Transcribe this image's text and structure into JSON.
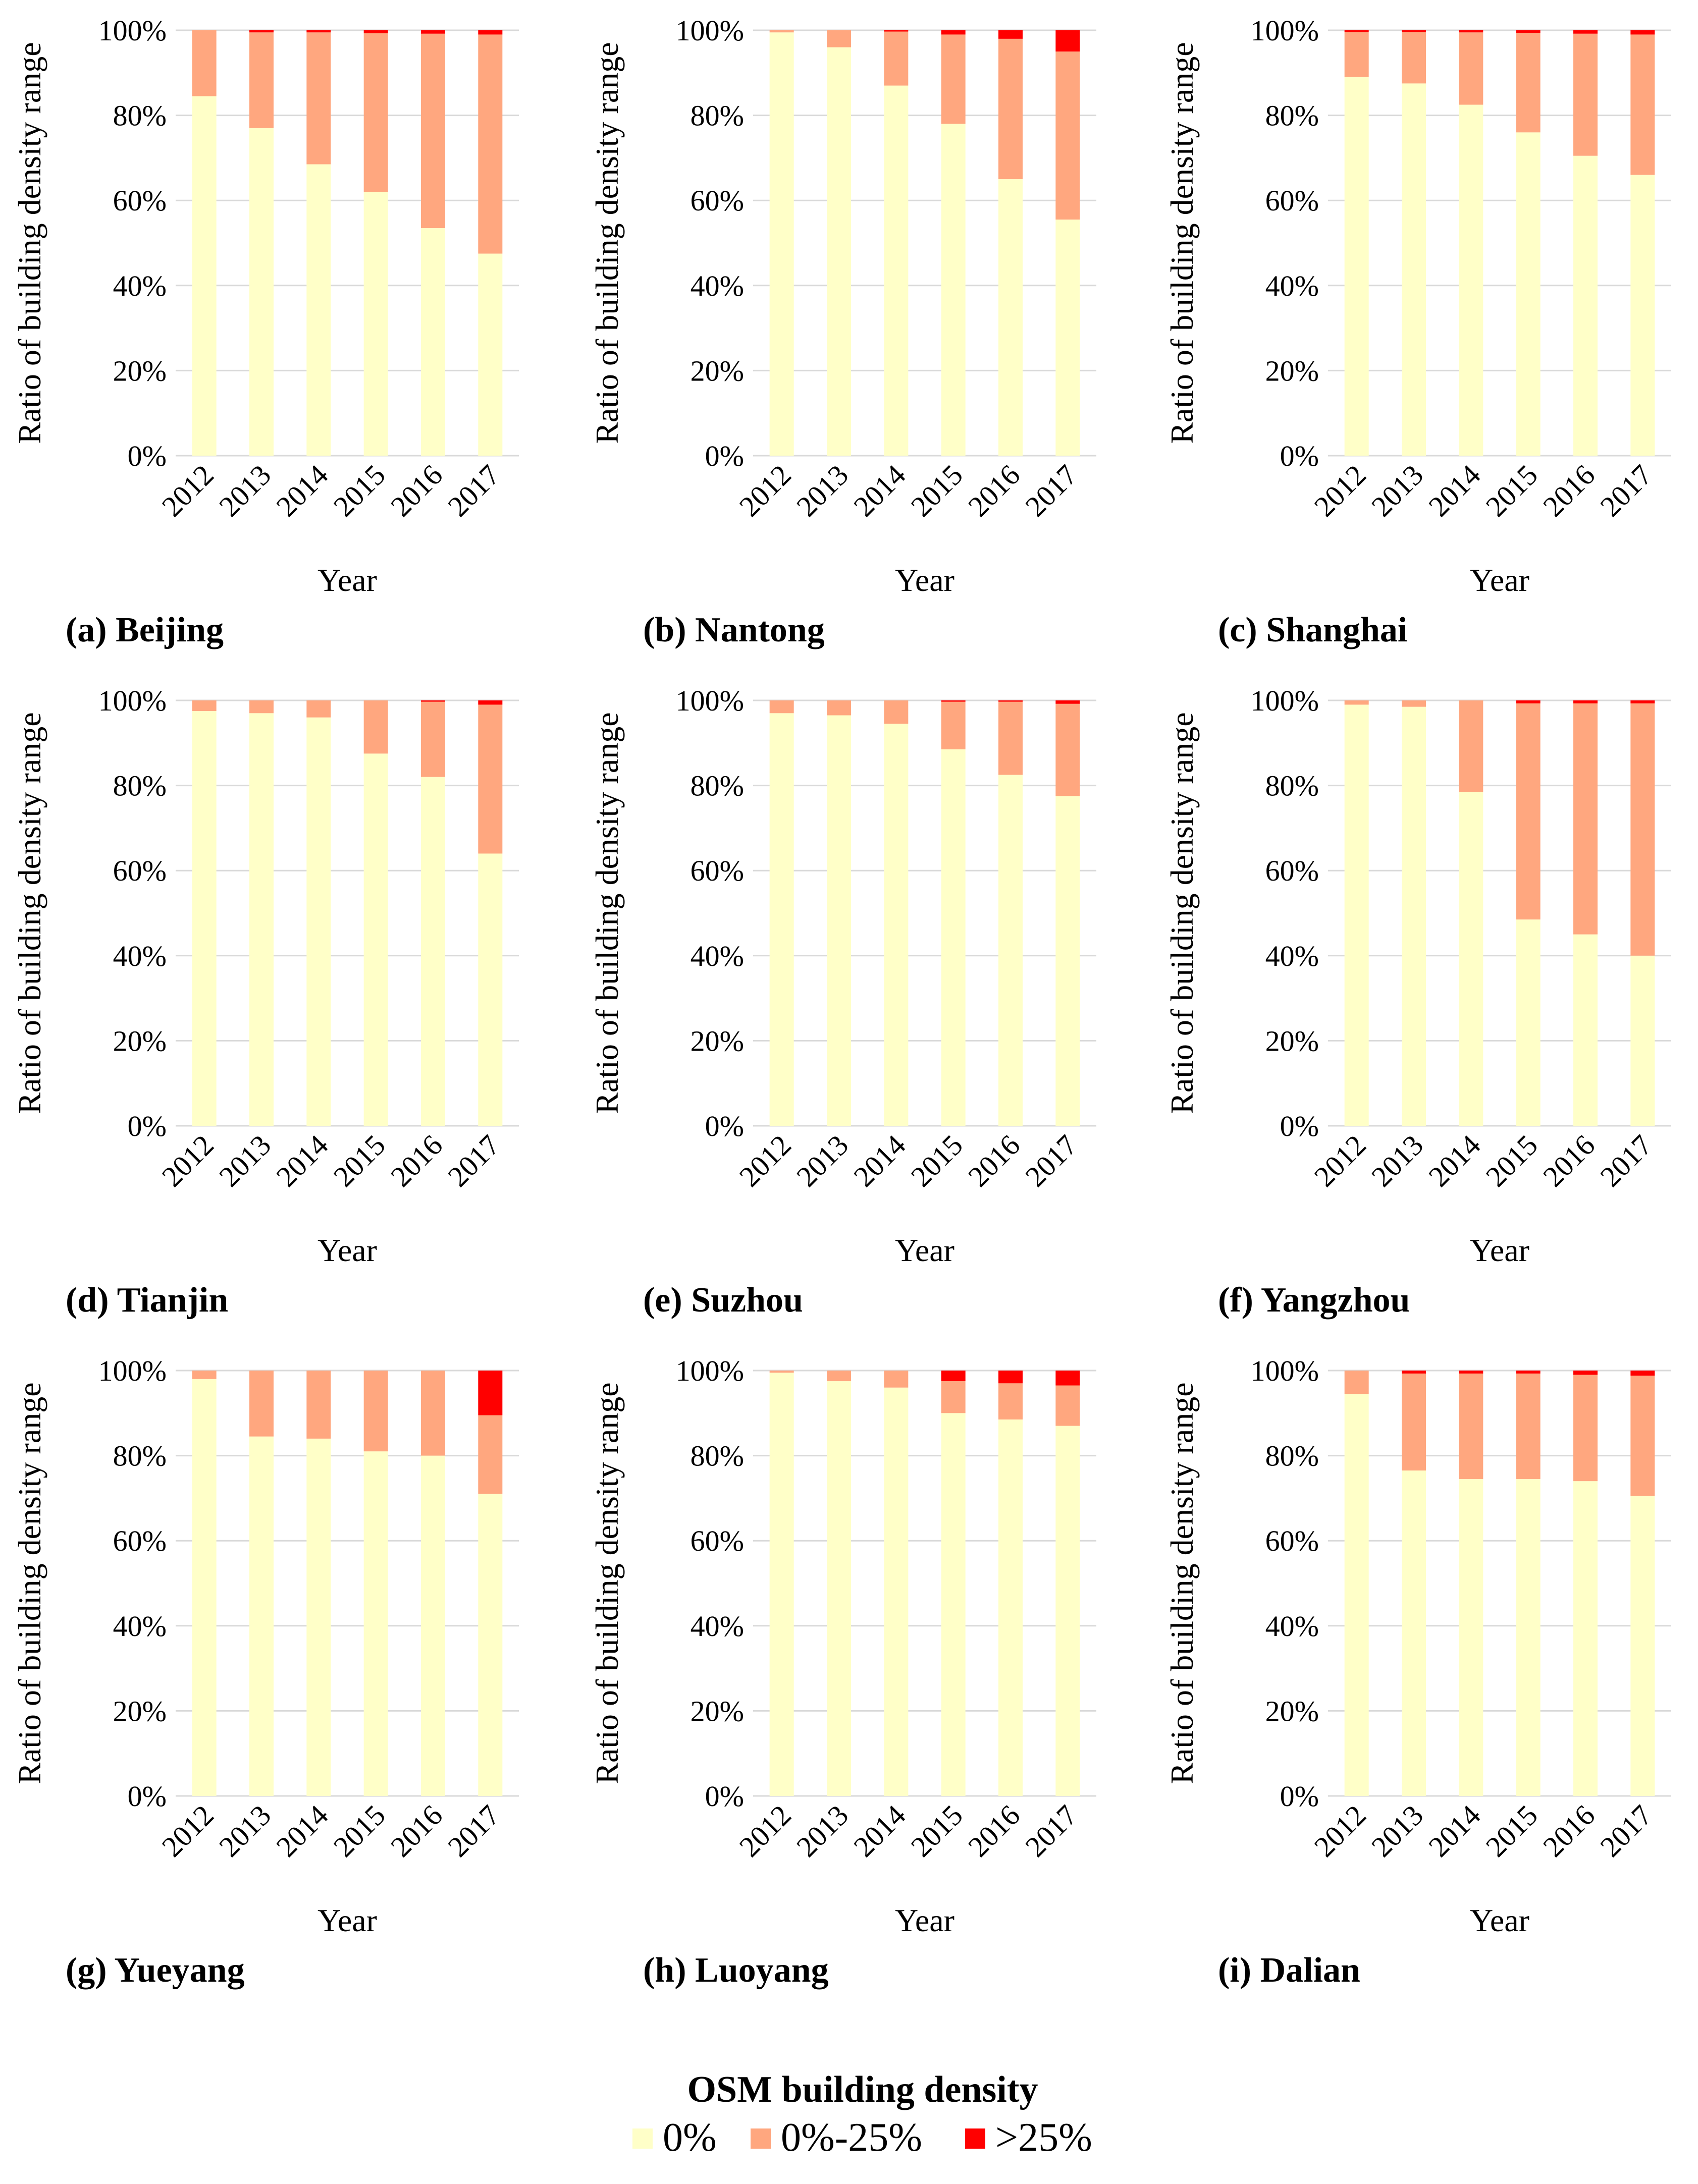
{
  "figure": {
    "legend_title": "OSM building density",
    "legend": [
      {
        "label": "0%",
        "color": "#FFFFC8"
      },
      {
        "label": "0%-25%",
        "color": "#FFA77F"
      },
      {
        "label": ">25%",
        "color": "#FF0000"
      }
    ]
  },
  "chart_data": [
    {
      "type": "bar",
      "stacked": true,
      "caption": "(a) Beijing",
      "categories": [
        "2012",
        "2013",
        "2014",
        "2015",
        "2016",
        "2017"
      ],
      "series": [
        {
          "name": "0%",
          "values": [
            84.5,
            77,
            68.5,
            62,
            53.5,
            47.5
          ]
        },
        {
          "name": "0%-25%",
          "values": [
            15.5,
            22.5,
            31,
            37.3,
            45.7,
            51.5
          ]
        },
        {
          "name": ">25%",
          "values": [
            0,
            0.5,
            0.5,
            0.7,
            0.8,
            1.0
          ]
        }
      ],
      "xlabel": "Year",
      "ylabel": "Ratio of building density range",
      "yticks": [
        "0%",
        "20%",
        "40%",
        "60%",
        "80%",
        "100%"
      ],
      "ylim": [
        0,
        100
      ]
    },
    {
      "type": "bar",
      "stacked": true,
      "caption": "(b) Nantong",
      "categories": [
        "2012",
        "2013",
        "2014",
        "2015",
        "2016",
        "2017"
      ],
      "series": [
        {
          "name": "0%",
          "values": [
            99.5,
            96,
            87,
            78,
            65,
            55.5
          ]
        },
        {
          "name": "0%-25%",
          "values": [
            0.5,
            4,
            12.7,
            21,
            33,
            39.5
          ]
        },
        {
          "name": ">25%",
          "values": [
            0,
            0,
            0.3,
            1.0,
            2.0,
            5.0
          ]
        }
      ],
      "xlabel": "Year",
      "ylabel": "Ratio of building density range",
      "yticks": [
        "0%",
        "20%",
        "40%",
        "60%",
        "80%",
        "100%"
      ],
      "ylim": [
        0,
        100
      ]
    },
    {
      "type": "bar",
      "stacked": true,
      "caption": "(c) Shanghai",
      "categories": [
        "2012",
        "2013",
        "2014",
        "2015",
        "2016",
        "2017"
      ],
      "series": [
        {
          "name": "0%",
          "values": [
            89,
            87.5,
            82.5,
            76,
            70.5,
            66
          ]
        },
        {
          "name": "0%-25%",
          "values": [
            10.6,
            12.1,
            17,
            23.4,
            28.7,
            33
          ]
        },
        {
          "name": ">25%",
          "values": [
            0.4,
            0.4,
            0.5,
            0.6,
            0.8,
            1.0
          ]
        }
      ],
      "xlabel": "Year",
      "ylabel": "Ratio of building density range",
      "yticks": [
        "0%",
        "20%",
        "40%",
        "60%",
        "80%",
        "100%"
      ],
      "ylim": [
        0,
        100
      ]
    },
    {
      "type": "bar",
      "stacked": true,
      "caption": "(d) Tianjin",
      "categories": [
        "2012",
        "2013",
        "2014",
        "2015",
        "2016",
        "2017"
      ],
      "series": [
        {
          "name": "0%",
          "values": [
            97.5,
            97,
            96,
            87.5,
            82,
            64
          ]
        },
        {
          "name": "0%-25%",
          "values": [
            2.5,
            3,
            4,
            12.5,
            17.7,
            35
          ]
        },
        {
          "name": ">25%",
          "values": [
            0,
            0,
            0,
            0,
            0.3,
            1.0
          ]
        }
      ],
      "xlabel": "Year",
      "ylabel": "Ratio of building density range",
      "yticks": [
        "0%",
        "20%",
        "40%",
        "60%",
        "80%",
        "100%"
      ],
      "ylim": [
        0,
        100
      ]
    },
    {
      "type": "bar",
      "stacked": true,
      "caption": "(e) Suzhou",
      "categories": [
        "2012",
        "2013",
        "2014",
        "2015",
        "2016",
        "2017"
      ],
      "series": [
        {
          "name": "0%",
          "values": [
            97,
            96.5,
            94.5,
            88.5,
            82.5,
            77.5
          ]
        },
        {
          "name": "0%-25%",
          "values": [
            3,
            3.5,
            5.5,
            11.2,
            17.2,
            21.7
          ]
        },
        {
          "name": ">25%",
          "values": [
            0,
            0,
            0,
            0.3,
            0.3,
            0.8
          ]
        }
      ],
      "xlabel": "Year",
      "ylabel": "Ratio of building density range",
      "yticks": [
        "0%",
        "20%",
        "40%",
        "60%",
        "80%",
        "100%"
      ],
      "ylim": [
        0,
        100
      ]
    },
    {
      "type": "bar",
      "stacked": true,
      "caption": "(f) Yangzhou",
      "categories": [
        "2012",
        "2013",
        "2014",
        "2015",
        "2016",
        "2017"
      ],
      "series": [
        {
          "name": "0%",
          "values": [
            99,
            98.5,
            78.5,
            48.5,
            45,
            40
          ]
        },
        {
          "name": "0%-25%",
          "values": [
            1,
            1.5,
            21.5,
            50.8,
            54.3,
            59.3
          ]
        },
        {
          "name": ">25%",
          "values": [
            0,
            0,
            0,
            0.7,
            0.7,
            0.7
          ]
        }
      ],
      "xlabel": "Year",
      "ylabel": "Ratio of building density range",
      "yticks": [
        "0%",
        "20%",
        "40%",
        "60%",
        "80%",
        "100%"
      ],
      "ylim": [
        0,
        100
      ]
    },
    {
      "type": "bar",
      "stacked": true,
      "caption": "(g) Yueyang",
      "categories": [
        "2012",
        "2013",
        "2014",
        "2015",
        "2016",
        "2017"
      ],
      "series": [
        {
          "name": "0%",
          "values": [
            98,
            84.5,
            84,
            81,
            80,
            71
          ]
        },
        {
          "name": "0%-25%",
          "values": [
            2,
            15.5,
            16,
            19,
            20,
            18.5
          ]
        },
        {
          "name": ">25%",
          "values": [
            0,
            0,
            0,
            0,
            0,
            10.5
          ]
        }
      ],
      "xlabel": "Year",
      "ylabel": "Ratio of building density range",
      "yticks": [
        "0%",
        "20%",
        "40%",
        "60%",
        "80%",
        "100%"
      ],
      "ylim": [
        0,
        100
      ]
    },
    {
      "type": "bar",
      "stacked": true,
      "caption": "(h) Luoyang",
      "categories": [
        "2012",
        "2013",
        "2014",
        "2015",
        "2016",
        "2017"
      ],
      "series": [
        {
          "name": "0%",
          "values": [
            99.5,
            97.5,
            96,
            90,
            88.5,
            87
          ]
        },
        {
          "name": "0%-25%",
          "values": [
            0.5,
            2.5,
            4,
            7.5,
            8.5,
            9.5
          ]
        },
        {
          "name": ">25%",
          "values": [
            0,
            0,
            0,
            2.5,
            3,
            3.5
          ]
        }
      ],
      "xlabel": "Year",
      "ylabel": "Ratio of building density range",
      "yticks": [
        "0%",
        "20%",
        "40%",
        "60%",
        "80%",
        "100%"
      ],
      "ylim": [
        0,
        100
      ]
    },
    {
      "type": "bar",
      "stacked": true,
      "caption": "(i) Dalian",
      "categories": [
        "2012",
        "2013",
        "2014",
        "2015",
        "2016",
        "2017"
      ],
      "series": [
        {
          "name": "0%",
          "values": [
            94.5,
            76.5,
            74.5,
            74.5,
            74,
            70.5
          ]
        },
        {
          "name": "0%-25%",
          "values": [
            5.5,
            22.8,
            24.8,
            24.8,
            25,
            28.3
          ]
        },
        {
          "name": ">25%",
          "values": [
            0,
            0.7,
            0.7,
            0.7,
            1.0,
            1.2
          ]
        }
      ],
      "xlabel": "Year",
      "ylabel": "Ratio of building density range",
      "yticks": [
        "0%",
        "20%",
        "40%",
        "60%",
        "80%",
        "100%"
      ],
      "ylim": [
        0,
        100
      ]
    }
  ]
}
